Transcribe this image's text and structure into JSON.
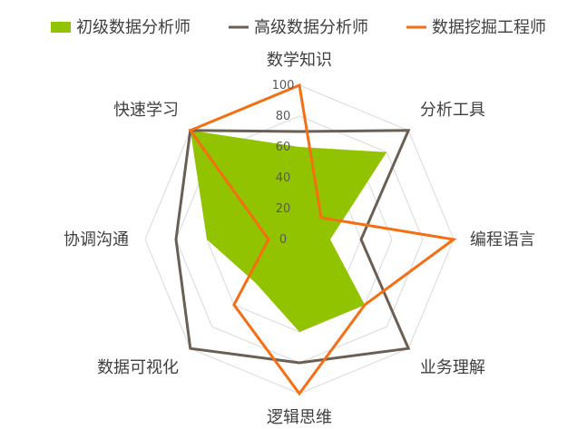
{
  "chart_data": {
    "type": "radar",
    "categories": [
      "数学知识",
      "分析工具",
      "编程语言",
      "业务理解",
      "逻辑思维",
      "数据可视化",
      "协调沟通",
      "快速学习"
    ],
    "r_ticks": [
      "0",
      "20",
      "40",
      "60",
      "80",
      "100"
    ],
    "rlim": [
      0,
      100
    ],
    "grid": true,
    "legend_position": "top",
    "series": [
      {
        "name": "初级数据分析师",
        "style": "filled",
        "color": "#92C300",
        "values": [
          60,
          80,
          20,
          60,
          60,
          40,
          60,
          100
        ]
      },
      {
        "name": "高级数据分析师",
        "style": "line",
        "color": "#6B5F54",
        "values": [
          70,
          100,
          40,
          100,
          80,
          100,
          80,
          100
        ]
      },
      {
        "name": "数据挖掘工程师",
        "style": "line",
        "color": "#F56F12",
        "values": [
          100,
          20,
          100,
          60,
          100,
          60,
          20,
          100
        ]
      }
    ]
  }
}
